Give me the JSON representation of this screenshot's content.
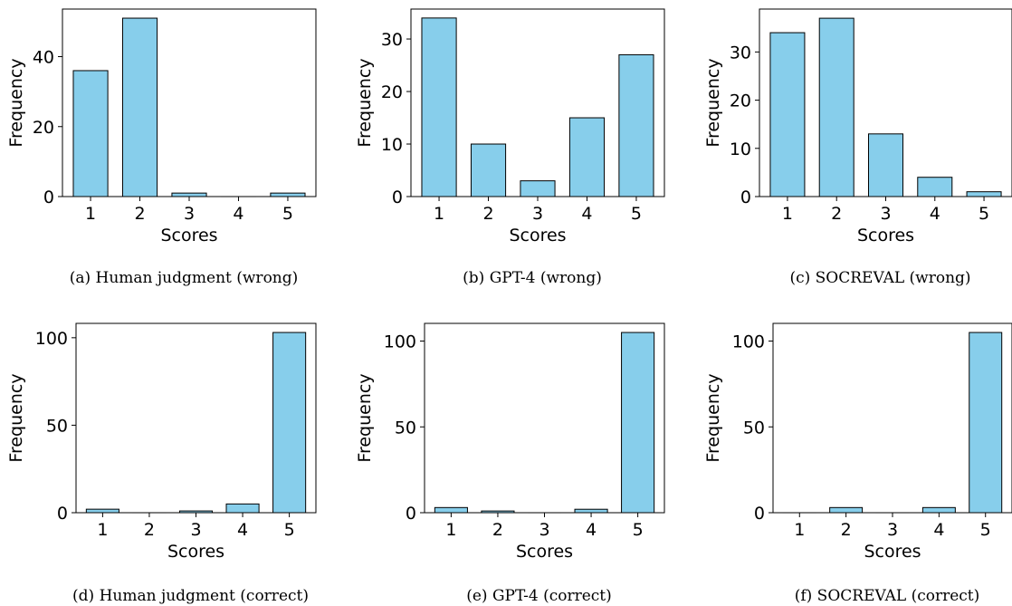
{
  "bar_color": "#87CEEB",
  "edge_color": "#000000",
  "chart_data": [
    {
      "type": "bar",
      "caption": "(a) Human judgment (wrong)",
      "xlabel": "Scores",
      "ylabel": "Frequency",
      "categories": [
        "1",
        "2",
        "3",
        "4",
        "5"
      ],
      "values": [
        36,
        51,
        1,
        0,
        1
      ],
      "ylim": [
        0,
        53.6
      ],
      "yticks": [
        0,
        20,
        40
      ]
    },
    {
      "type": "bar",
      "caption": "(b) GPT-4 (wrong)",
      "xlabel": "Scores",
      "ylabel": "Frequency",
      "categories": [
        "1",
        "2",
        "3",
        "4",
        "5"
      ],
      "values": [
        34,
        10,
        3,
        15,
        27
      ],
      "ylim": [
        0,
        35.7
      ],
      "yticks": [
        0,
        10,
        20,
        30
      ]
    },
    {
      "type": "bar",
      "caption": "(c) SOCREVAL (wrong)",
      "xlabel": "Scores",
      "ylabel": "Frequency",
      "categories": [
        "1",
        "2",
        "3",
        "4",
        "5"
      ],
      "values": [
        34,
        37,
        13,
        4,
        1
      ],
      "ylim": [
        0,
        38.9
      ],
      "yticks": [
        0,
        10,
        20,
        30
      ]
    },
    {
      "type": "bar",
      "caption": "(d) Human judgment (correct)",
      "xlabel": "Scores",
      "ylabel": "Frequency",
      "categories": [
        "1",
        "2",
        "3",
        "4",
        "5"
      ],
      "values": [
        2,
        0,
        1,
        5,
        103
      ],
      "ylim": [
        0,
        108.2
      ],
      "yticks": [
        0,
        50,
        100
      ]
    },
    {
      "type": "bar",
      "caption": "(e) GPT-4 (correct)",
      "xlabel": "Scores",
      "ylabel": "Frequency",
      "categories": [
        "1",
        "2",
        "3",
        "4",
        "5"
      ],
      "values": [
        3,
        1,
        0,
        2,
        105
      ],
      "ylim": [
        0,
        110.3
      ],
      "yticks": [
        0,
        50,
        100
      ]
    },
    {
      "type": "bar",
      "caption": "(f) SOCREVAL (correct)",
      "xlabel": "Scores",
      "ylabel": "Frequency",
      "categories": [
        "1",
        "2",
        "3",
        "4",
        "5"
      ],
      "values": [
        0,
        3,
        0,
        3,
        105
      ],
      "ylim": [
        0,
        110.3
      ],
      "yticks": [
        0,
        50,
        100
      ]
    }
  ]
}
